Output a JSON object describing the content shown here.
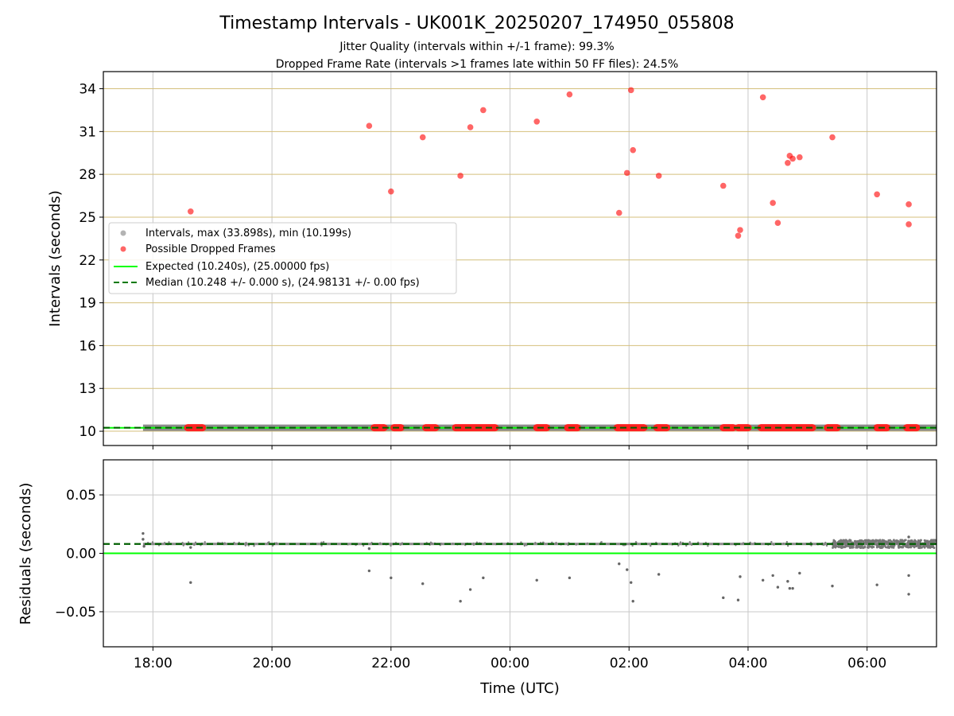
{
  "chart_data": [
    {
      "type": "scatter",
      "title": "Timestamp Intervals - UK001K_20250207_174950_055808",
      "subtitle_lines": [
        "Jitter Quality (intervals within +/-1 frame): 99.3%",
        "Dropped Frame Rate (intervals >1 frames late within 50 FF files): 24.5%"
      ],
      "xlabel": "",
      "ylabel": "Intervals (seconds)",
      "xlim": [
        "17:10",
        "07:10"
      ],
      "ylim": [
        9.0,
        35.2
      ],
      "yticks": [
        10,
        13,
        16,
        19,
        22,
        25,
        28,
        31,
        34
      ],
      "grid": true,
      "legend_position": "center-left",
      "legend": [
        "Intervals, max (33.898s), min (10.199s)",
        "Possible Dropped Frames",
        "Expected (10.240s), (25.00000 fps)",
        "Median (10.248 +/- 0.000 s), (24.98131 +/- 0.00 fps)"
      ],
      "expected": 10.24,
      "median": 10.248,
      "intervals_range": [
        "17:50",
        "07:10"
      ],
      "series": [
        {
          "name": "Possible Dropped Frames",
          "color": "#ff0000",
          "points": [
            [
              "18:38",
              25.4
            ],
            [
              "21:38",
              31.4
            ],
            [
              "22:00",
              26.8
            ],
            [
              "22:32",
              30.6
            ],
            [
              "23:10",
              27.9
            ],
            [
              "23:20",
              31.3
            ],
            [
              "23:33",
              32.5
            ],
            [
              "00:27",
              31.7
            ],
            [
              "01:00",
              33.6
            ],
            [
              "01:50",
              25.3
            ],
            [
              "01:58",
              28.1
            ],
            [
              "02:02",
              33.9
            ],
            [
              "02:04",
              29.7
            ],
            [
              "02:30",
              27.9
            ],
            [
              "03:35",
              27.2
            ],
            [
              "03:50",
              23.7
            ],
            [
              "03:52",
              24.1
            ],
            [
              "04:15",
              33.4
            ],
            [
              "04:25",
              26.0
            ],
            [
              "04:30",
              24.6
            ],
            [
              "04:40",
              28.8
            ],
            [
              "04:42",
              29.3
            ],
            [
              "04:45",
              29.1
            ],
            [
              "04:52",
              29.2
            ],
            [
              "05:25",
              30.6
            ],
            [
              "06:10",
              26.6
            ],
            [
              "06:42",
              25.9
            ],
            [
              "06:42",
              24.5
            ]
          ]
        }
      ],
      "dropped_clusters_near_expected": [
        [
          "18:35",
          "18:50"
        ],
        [
          "21:43",
          "21:53"
        ],
        [
          "22:03",
          "22:10"
        ],
        [
          "22:35",
          "22:45"
        ],
        [
          "23:05",
          "23:45"
        ],
        [
          "00:27",
          "00:37"
        ],
        [
          "00:58",
          "01:08"
        ],
        [
          "01:48",
          "02:15"
        ],
        [
          "02:28",
          "02:38"
        ],
        [
          "03:35",
          "03:45"
        ],
        [
          "03:50",
          "04:00"
        ],
        [
          "04:13",
          "05:05"
        ],
        [
          "05:20",
          "05:30"
        ],
        [
          "06:10",
          "06:20"
        ],
        [
          "06:40",
          "06:50"
        ]
      ]
    },
    {
      "type": "scatter",
      "xlabel": "Time (UTC)",
      "ylabel": "Residuals (seconds)",
      "xlim": [
        "17:10",
        "07:10"
      ],
      "ylim": [
        -0.08,
        0.08
      ],
      "yticks": [
        0.05,
        0.0,
        -0.05
      ],
      "ytick_labels": [
        "0.05",
        "0.00",
        "−0.05"
      ],
      "xticks": [
        "18:00",
        "20:00",
        "22:00",
        "00:00",
        "02:00",
        "04:00",
        "06:00"
      ],
      "grid": true,
      "expected_residual": 0.0,
      "median_residual": 0.008,
      "series": [
        {
          "name": "Residuals",
          "color": "#808080",
          "points": [
            [
              "17:50",
              0.017
            ],
            [
              "17:50",
              0.012
            ],
            [
              "17:51",
              0.006
            ],
            [
              "18:38",
              -0.025
            ],
            [
              "18:38",
              0.005
            ],
            [
              "21:38",
              -0.015
            ],
            [
              "21:38",
              0.004
            ],
            [
              "22:00",
              -0.021
            ],
            [
              "22:32",
              -0.026
            ],
            [
              "23:10",
              -0.041
            ],
            [
              "23:20",
              -0.031
            ],
            [
              "23:33",
              -0.021
            ],
            [
              "00:27",
              -0.023
            ],
            [
              "01:00",
              -0.021
            ],
            [
              "01:50",
              -0.009
            ],
            [
              "01:58",
              -0.014
            ],
            [
              "02:02",
              -0.025
            ],
            [
              "02:04",
              -0.041
            ],
            [
              "02:30",
              -0.018
            ],
            [
              "03:35",
              -0.038
            ],
            [
              "03:50",
              -0.04
            ],
            [
              "03:52",
              -0.02
            ],
            [
              "04:15",
              -0.023
            ],
            [
              "04:25",
              -0.019
            ],
            [
              "04:30",
              -0.029
            ],
            [
              "04:40",
              -0.024
            ],
            [
              "04:42",
              -0.03
            ],
            [
              "04:45",
              -0.03
            ],
            [
              "04:52",
              -0.017
            ],
            [
              "05:25",
              -0.028
            ],
            [
              "06:10",
              -0.027
            ],
            [
              "06:42",
              -0.035
            ],
            [
              "06:42",
              -0.019
            ],
            [
              "06:42",
              0.014
            ]
          ]
        }
      ]
    }
  ]
}
